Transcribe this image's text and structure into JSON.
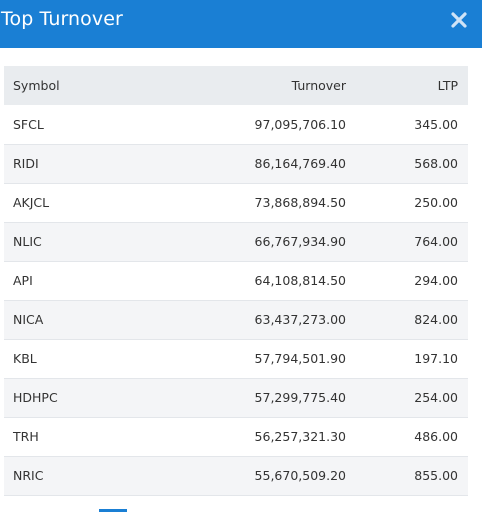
{
  "header": {
    "title": "Top Turnover"
  },
  "table": {
    "columns": {
      "symbol": "Symbol",
      "turnover": "Turnover",
      "ltp": "LTP"
    },
    "rows": [
      {
        "symbol": "SFCL",
        "turnover": "97,095,706.10",
        "ltp": "345.00"
      },
      {
        "symbol": "RIDI",
        "turnover": "86,164,769.40",
        "ltp": "568.00"
      },
      {
        "symbol": "AKJCL",
        "turnover": "73,868,894.50",
        "ltp": "250.00"
      },
      {
        "symbol": "NLIC",
        "turnover": "66,767,934.90",
        "ltp": "764.00"
      },
      {
        "symbol": "API",
        "turnover": "64,108,814.50",
        "ltp": "294.00"
      },
      {
        "symbol": "NICA",
        "turnover": "63,437,273.00",
        "ltp": "824.00"
      },
      {
        "symbol": "KBL",
        "turnover": "57,794,501.90",
        "ltp": "197.10"
      },
      {
        "symbol": "HDHPC",
        "turnover": "57,299,775.40",
        "ltp": "254.00"
      },
      {
        "symbol": "TRH",
        "turnover": "56,257,321.30",
        "ltp": "486.00"
      },
      {
        "symbol": "NRIC",
        "turnover": "55,670,509.20",
        "ltp": "855.00"
      }
    ]
  },
  "icons": {
    "close": "close-icon"
  },
  "colors": {
    "header_bg": "#1a7fd4",
    "header_text": "#ffffff",
    "thead_bg": "#e9ecef"
  }
}
